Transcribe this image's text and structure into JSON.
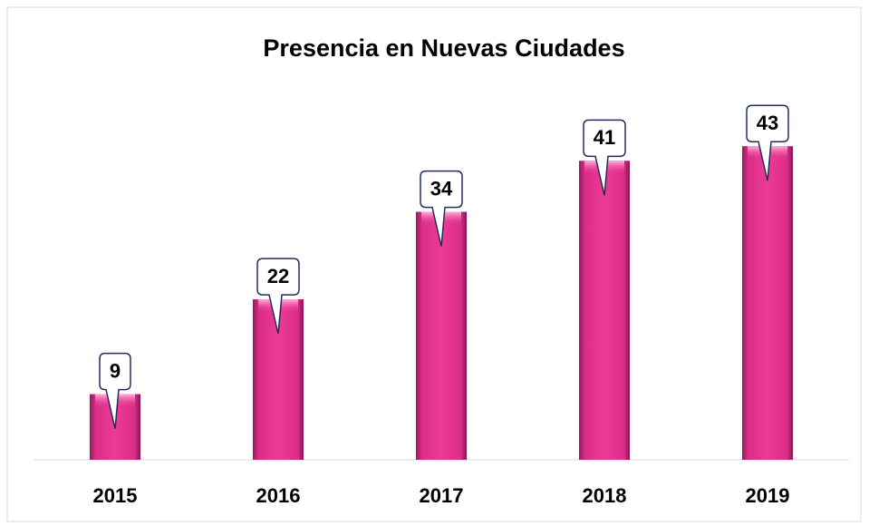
{
  "chart_data": {
    "type": "bar",
    "title": "Presencia en Nuevas Ciudades",
    "categories": [
      "2015",
      "2016",
      "2017",
      "2018",
      "2019"
    ],
    "values": [
      9,
      22,
      34,
      41,
      43
    ],
    "color": "#e2368f",
    "ylim": [
      0,
      50
    ]
  }
}
